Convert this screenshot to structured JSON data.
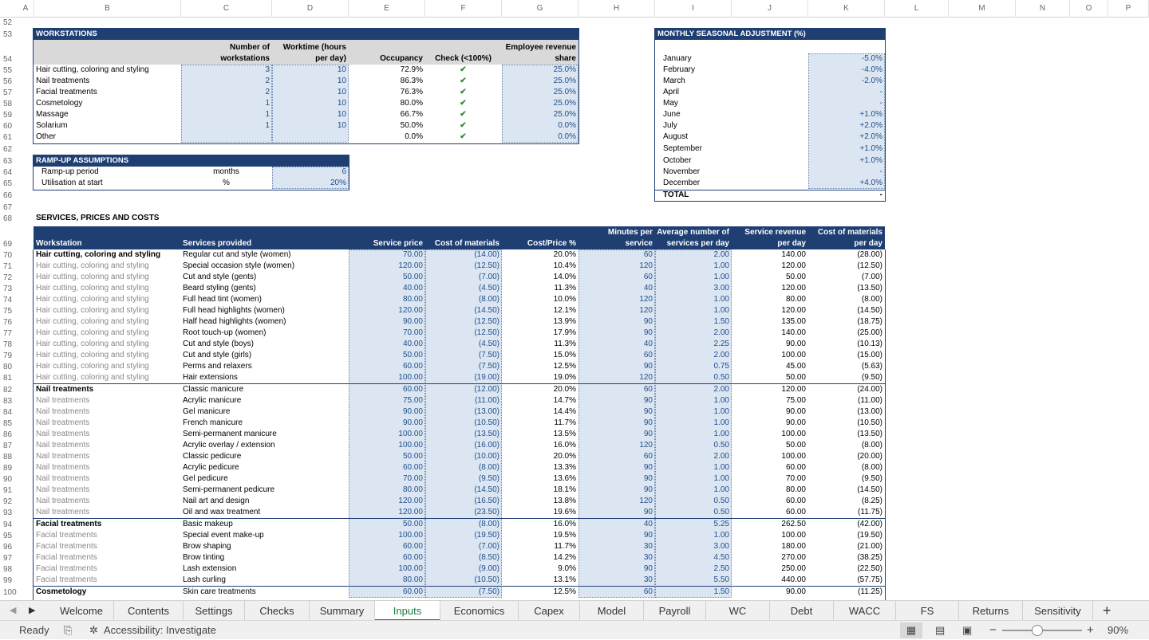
{
  "columns": [
    "A",
    "B",
    "C",
    "D",
    "E",
    "F",
    "G",
    "H",
    "I",
    "J",
    "K",
    "L",
    "M",
    "N",
    "O",
    "P"
  ],
  "rownums": [
    "52",
    "53",
    "54",
    "55",
    "56",
    "57",
    "58",
    "59",
    "60",
    "61",
    "62",
    "63",
    "64",
    "65",
    "66",
    "67",
    "68",
    "69",
    "70",
    "71",
    "72",
    "73",
    "74",
    "75",
    "76",
    "77",
    "78",
    "79",
    "80",
    "81",
    "82",
    "83",
    "84",
    "85",
    "86",
    "87",
    "88",
    "89",
    "90",
    "91",
    "92",
    "93",
    "94",
    "95",
    "96",
    "97",
    "98",
    "99",
    "100"
  ],
  "workstations": {
    "title": "WORKSTATIONS",
    "h_num1": "Number of",
    "h_num2": "workstations",
    "h_wt1": "Worktime (hours",
    "h_wt2": "per day)",
    "h_occ": "Occupancy",
    "h_chk": "Check (<100%)",
    "h_emp1": "Employee revenue",
    "h_emp2": "share",
    "rows": [
      {
        "name": "Hair cutting, coloring and styling",
        "num": "3",
        "wt": "10",
        "occ": "72.9%",
        "chk": "✔",
        "emp": "25.0%"
      },
      {
        "name": "Nail treatments",
        "num": "2",
        "wt": "10",
        "occ": "86.3%",
        "chk": "✔",
        "emp": "25.0%"
      },
      {
        "name": "Facial treatments",
        "num": "2",
        "wt": "10",
        "occ": "76.3%",
        "chk": "✔",
        "emp": "25.0%"
      },
      {
        "name": "Cosmetology",
        "num": "1",
        "wt": "10",
        "occ": "80.0%",
        "chk": "✔",
        "emp": "25.0%"
      },
      {
        "name": "Massage",
        "num": "1",
        "wt": "10",
        "occ": "66.7%",
        "chk": "✔",
        "emp": "25.0%"
      },
      {
        "name": "Solarium",
        "num": "1",
        "wt": "10",
        "occ": "50.0%",
        "chk": "✔",
        "emp": "0.0%"
      },
      {
        "name": "Other",
        "num": "",
        "wt": "",
        "occ": "0.0%",
        "chk": "✔",
        "emp": "0.0%"
      }
    ]
  },
  "rampup": {
    "title": "RAMP-UP ASSUMPTIONS",
    "rows": [
      {
        "label": "Ramp-up period",
        "unit": "months",
        "value": "6"
      },
      {
        "label": "Utilisation at start",
        "unit": "%",
        "value": "20%"
      }
    ]
  },
  "seasonal": {
    "title": "MONTHLY SEASONAL ADJUSTMENT (%)",
    "rows": [
      {
        "m": "January",
        "v": "-5.0%"
      },
      {
        "m": "February",
        "v": "-4.0%"
      },
      {
        "m": "March",
        "v": "-2.0%"
      },
      {
        "m": "April",
        "v": "-"
      },
      {
        "m": "May",
        "v": "-"
      },
      {
        "m": "June",
        "v": "+1.0%"
      },
      {
        "m": "July",
        "v": "+2.0%"
      },
      {
        "m": "August",
        "v": "+2.0%"
      },
      {
        "m": "September",
        "v": "+1.0%"
      },
      {
        "m": "October",
        "v": "+1.0%"
      },
      {
        "m": "November",
        "v": "-"
      },
      {
        "m": "December",
        "v": "+4.0%"
      }
    ],
    "total_label": "TOTAL",
    "total_value": "-"
  },
  "services": {
    "title": "SERVICES, PRICES AND COSTS",
    "h_ws": "Workstation",
    "h_svc": "Services provided",
    "h_price": "Service price",
    "h_mat": "Cost of materials",
    "h_cp": "Cost/Price %",
    "h_min1": "Minutes per",
    "h_min2": "service",
    "h_avg1": "Average number of",
    "h_avg2": "services per day",
    "h_rev1": "Service revenue",
    "h_rev2": "per day",
    "h_com1": "Cost of materials",
    "h_com2": "per day",
    "rows": [
      {
        "ws": "Hair cutting, coloring and styling",
        "svc": "Regular cut and style (women)",
        "price": "70.00",
        "mat": "(14.00)",
        "cp": "20.0%",
        "min": "60",
        "avg": "2.00",
        "rev": "140.00",
        "com": "(28.00)",
        "first": true
      },
      {
        "ws": "Hair cutting, coloring and styling",
        "svc": "Special occasion style (women)",
        "price": "120.00",
        "mat": "(12.50)",
        "cp": "10.4%",
        "min": "120",
        "avg": "1.00",
        "rev": "120.00",
        "com": "(12.50)"
      },
      {
        "ws": "Hair cutting, coloring and styling",
        "svc": "Cut and style (gents)",
        "price": "50.00",
        "mat": "(7.00)",
        "cp": "14.0%",
        "min": "60",
        "avg": "1.00",
        "rev": "50.00",
        "com": "(7.00)"
      },
      {
        "ws": "Hair cutting, coloring and styling",
        "svc": "Beard styling (gents)",
        "price": "40.00",
        "mat": "(4.50)",
        "cp": "11.3%",
        "min": "40",
        "avg": "3.00",
        "rev": "120.00",
        "com": "(13.50)"
      },
      {
        "ws": "Hair cutting, coloring and styling",
        "svc": "Full head tint (women)",
        "price": "80.00",
        "mat": "(8.00)",
        "cp": "10.0%",
        "min": "120",
        "avg": "1.00",
        "rev": "80.00",
        "com": "(8.00)"
      },
      {
        "ws": "Hair cutting, coloring and styling",
        "svc": "Full head highlights (women)",
        "price": "120.00",
        "mat": "(14.50)",
        "cp": "12.1%",
        "min": "120",
        "avg": "1.00",
        "rev": "120.00",
        "com": "(14.50)"
      },
      {
        "ws": "Hair cutting, coloring and styling",
        "svc": "Half head highlights (women)",
        "price": "90.00",
        "mat": "(12.50)",
        "cp": "13.9%",
        "min": "90",
        "avg": "1.50",
        "rev": "135.00",
        "com": "(18.75)"
      },
      {
        "ws": "Hair cutting, coloring and styling",
        "svc": "Root touch-up (women)",
        "price": "70.00",
        "mat": "(12.50)",
        "cp": "17.9%",
        "min": "90",
        "avg": "2.00",
        "rev": "140.00",
        "com": "(25.00)"
      },
      {
        "ws": "Hair cutting, coloring and styling",
        "svc": "Cut and style (boys)",
        "price": "40.00",
        "mat": "(4.50)",
        "cp": "11.3%",
        "min": "40",
        "avg": "2.25",
        "rev": "90.00",
        "com": "(10.13)"
      },
      {
        "ws": "Hair cutting, coloring and styling",
        "svc": "Cut and style (girls)",
        "price": "50.00",
        "mat": "(7.50)",
        "cp": "15.0%",
        "min": "60",
        "avg": "2.00",
        "rev": "100.00",
        "com": "(15.00)"
      },
      {
        "ws": "Hair cutting, coloring and styling",
        "svc": "Perms and relaxers",
        "price": "60.00",
        "mat": "(7.50)",
        "cp": "12.5%",
        "min": "90",
        "avg": "0.75",
        "rev": "45.00",
        "com": "(5.63)"
      },
      {
        "ws": "Hair cutting, coloring and styling",
        "svc": "Hair extensions",
        "price": "100.00",
        "mat": "(19.00)",
        "cp": "19.0%",
        "min": "120",
        "avg": "0.50",
        "rev": "50.00",
        "com": "(9.50)"
      },
      {
        "ws": "Nail treatments",
        "svc": "Classic manicure",
        "price": "60.00",
        "mat": "(12.00)",
        "cp": "20.0%",
        "min": "60",
        "avg": "2.00",
        "rev": "120.00",
        "com": "(24.00)",
        "first": true
      },
      {
        "ws": "Nail treatments",
        "svc": "Acrylic manicure",
        "price": "75.00",
        "mat": "(11.00)",
        "cp": "14.7%",
        "min": "90",
        "avg": "1.00",
        "rev": "75.00",
        "com": "(11.00)"
      },
      {
        "ws": "Nail treatments",
        "svc": "Gel manicure",
        "price": "90.00",
        "mat": "(13.00)",
        "cp": "14.4%",
        "min": "90",
        "avg": "1.00",
        "rev": "90.00",
        "com": "(13.00)"
      },
      {
        "ws": "Nail treatments",
        "svc": "French manicure",
        "price": "90.00",
        "mat": "(10.50)",
        "cp": "11.7%",
        "min": "90",
        "avg": "1.00",
        "rev": "90.00",
        "com": "(10.50)"
      },
      {
        "ws": "Nail treatments",
        "svc": "Semi-permanent manicure",
        "price": "100.00",
        "mat": "(13.50)",
        "cp": "13.5%",
        "min": "90",
        "avg": "1.00",
        "rev": "100.00",
        "com": "(13.50)"
      },
      {
        "ws": "Nail treatments",
        "svc": "Acrylic overlay / extension",
        "price": "100.00",
        "mat": "(16.00)",
        "cp": "16.0%",
        "min": "120",
        "avg": "0.50",
        "rev": "50.00",
        "com": "(8.00)"
      },
      {
        "ws": "Nail treatments",
        "svc": "Classic pedicure",
        "price": "50.00",
        "mat": "(10.00)",
        "cp": "20.0%",
        "min": "60",
        "avg": "2.00",
        "rev": "100.00",
        "com": "(20.00)"
      },
      {
        "ws": "Nail treatments",
        "svc": "Acrylic pedicure",
        "price": "60.00",
        "mat": "(8.00)",
        "cp": "13.3%",
        "min": "90",
        "avg": "1.00",
        "rev": "60.00",
        "com": "(8.00)"
      },
      {
        "ws": "Nail treatments",
        "svc": "Gel pedicure",
        "price": "70.00",
        "mat": "(9.50)",
        "cp": "13.6%",
        "min": "90",
        "avg": "1.00",
        "rev": "70.00",
        "com": "(9.50)"
      },
      {
        "ws": "Nail treatments",
        "svc": "Semi-permanent pedicure",
        "price": "80.00",
        "mat": "(14.50)",
        "cp": "18.1%",
        "min": "90",
        "avg": "1.00",
        "rev": "80.00",
        "com": "(14.50)"
      },
      {
        "ws": "Nail treatments",
        "svc": "Nail art and design",
        "price": "120.00",
        "mat": "(16.50)",
        "cp": "13.8%",
        "min": "120",
        "avg": "0.50",
        "rev": "60.00",
        "com": "(8.25)"
      },
      {
        "ws": "Nail treatments",
        "svc": "Oil and wax treatment",
        "price": "120.00",
        "mat": "(23.50)",
        "cp": "19.6%",
        "min": "90",
        "avg": "0.50",
        "rev": "60.00",
        "com": "(11.75)"
      },
      {
        "ws": "Facial treatments",
        "svc": "Basic makeup",
        "price": "50.00",
        "mat": "(8.00)",
        "cp": "16.0%",
        "min": "40",
        "avg": "5.25",
        "rev": "262.50",
        "com": "(42.00)",
        "first": true
      },
      {
        "ws": "Facial treatments",
        "svc": "Special event make-up",
        "price": "100.00",
        "mat": "(19.50)",
        "cp": "19.5%",
        "min": "90",
        "avg": "1.00",
        "rev": "100.00",
        "com": "(19.50)"
      },
      {
        "ws": "Facial treatments",
        "svc": "Brow shaping",
        "price": "60.00",
        "mat": "(7.00)",
        "cp": "11.7%",
        "min": "30",
        "avg": "3.00",
        "rev": "180.00",
        "com": "(21.00)"
      },
      {
        "ws": "Facial treatments",
        "svc": "Brow tinting",
        "price": "60.00",
        "mat": "(8.50)",
        "cp": "14.2%",
        "min": "30",
        "avg": "4.50",
        "rev": "270.00",
        "com": "(38.25)"
      },
      {
        "ws": "Facial treatments",
        "svc": "Lash extension",
        "price": "100.00",
        "mat": "(9.00)",
        "cp": "9.0%",
        "min": "90",
        "avg": "2.50",
        "rev": "250.00",
        "com": "(22.50)"
      },
      {
        "ws": "Facial treatments",
        "svc": "Lash curling",
        "price": "80.00",
        "mat": "(10.50)",
        "cp": "13.1%",
        "min": "30",
        "avg": "5.50",
        "rev": "440.00",
        "com": "(57.75)"
      },
      {
        "ws": "Cosmetology",
        "svc": "Skin care treatments",
        "price": "60.00",
        "mat": "(7.50)",
        "cp": "12.5%",
        "min": "60",
        "avg": "1.50",
        "rev": "90.00",
        "com": "(11.25)",
        "first": true
      }
    ]
  },
  "tabs": [
    "Welcome",
    "Contents",
    "Settings",
    "Checks",
    "Summary",
    "Inputs",
    "Economics",
    "Capex",
    "Model",
    "Payroll",
    "WC",
    "Debt",
    "WACC",
    "FS",
    "Returns",
    "Sensitivity"
  ],
  "active_tab": "Inputs",
  "status": {
    "ready": "Ready",
    "accessibility": "Accessibility: Investigate",
    "zoom": "90%"
  }
}
